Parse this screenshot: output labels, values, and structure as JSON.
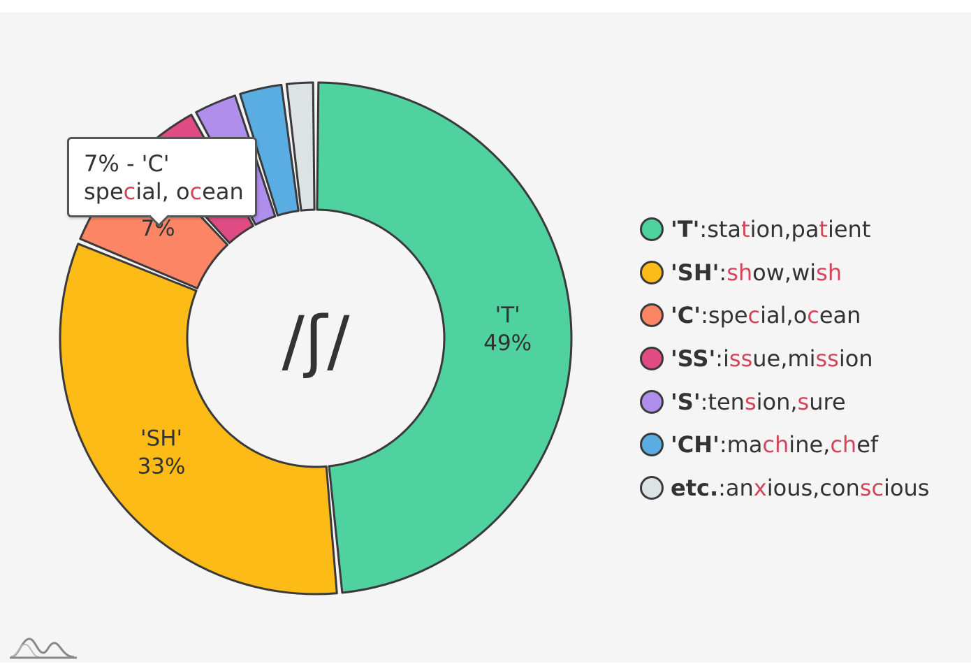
{
  "chart_data": {
    "type": "donut",
    "center_label": "/ʃ/",
    "slices": [
      {
        "key": "'T'",
        "percent": 49,
        "color": "#4fd1a0",
        "examples": [
          [
            "sta",
            "t",
            "ion"
          ],
          [
            "pa",
            "t",
            "ient"
          ]
        ],
        "slice_label": "'T'",
        "value_label": "49%"
      },
      {
        "key": "'SH'",
        "percent": 33,
        "color": "#fdbb18",
        "examples": [
          [
            "",
            "sh",
            "ow"
          ],
          [
            "wi",
            "sh",
            ""
          ]
        ],
        "slice_label": "'SH'",
        "value_label": "33%"
      },
      {
        "key": "'C'",
        "percent": 7,
        "color": "#fb8565",
        "examples": [
          [
            "spe",
            "c",
            "ial"
          ],
          [
            "o",
            "c",
            "ean"
          ]
        ],
        "slice_label": "",
        "value_label": "7%"
      },
      {
        "key": "'SS'",
        "percent": 4,
        "color": "#e14b84",
        "examples": [
          [
            "i",
            "ss",
            "ue"
          ],
          [
            "mi",
            "ss",
            "ion"
          ]
        ]
      },
      {
        "key": "'S'",
        "percent": 3,
        "color": "#b08eec",
        "examples": [
          [
            "ten",
            "s",
            "ion"
          ],
          [
            "",
            "s",
            "ure"
          ]
        ]
      },
      {
        "key": "'CH'",
        "percent": 3,
        "color": "#59ade3",
        "examples": [
          [
            "ma",
            "ch",
            "ine"
          ],
          [
            "",
            "ch",
            "ef"
          ]
        ]
      },
      {
        "key": "etc.",
        "percent": 2,
        "color": "#dde2e5",
        "examples": [
          [
            "an",
            "x",
            "ious"
          ],
          [
            "con",
            "sc",
            "ious"
          ]
        ]
      }
    ]
  },
  "tooltip": {
    "line1": "7% - 'C'",
    "word1": [
      "spe",
      "c",
      "ial"
    ],
    "separator": ", ",
    "word2": [
      "o",
      "c",
      "ean"
    ]
  },
  "colors": {
    "outline": "#3a3a3a",
    "highlight": "#d2455a",
    "background": "#f5f5f5",
    "text": "#333333"
  }
}
